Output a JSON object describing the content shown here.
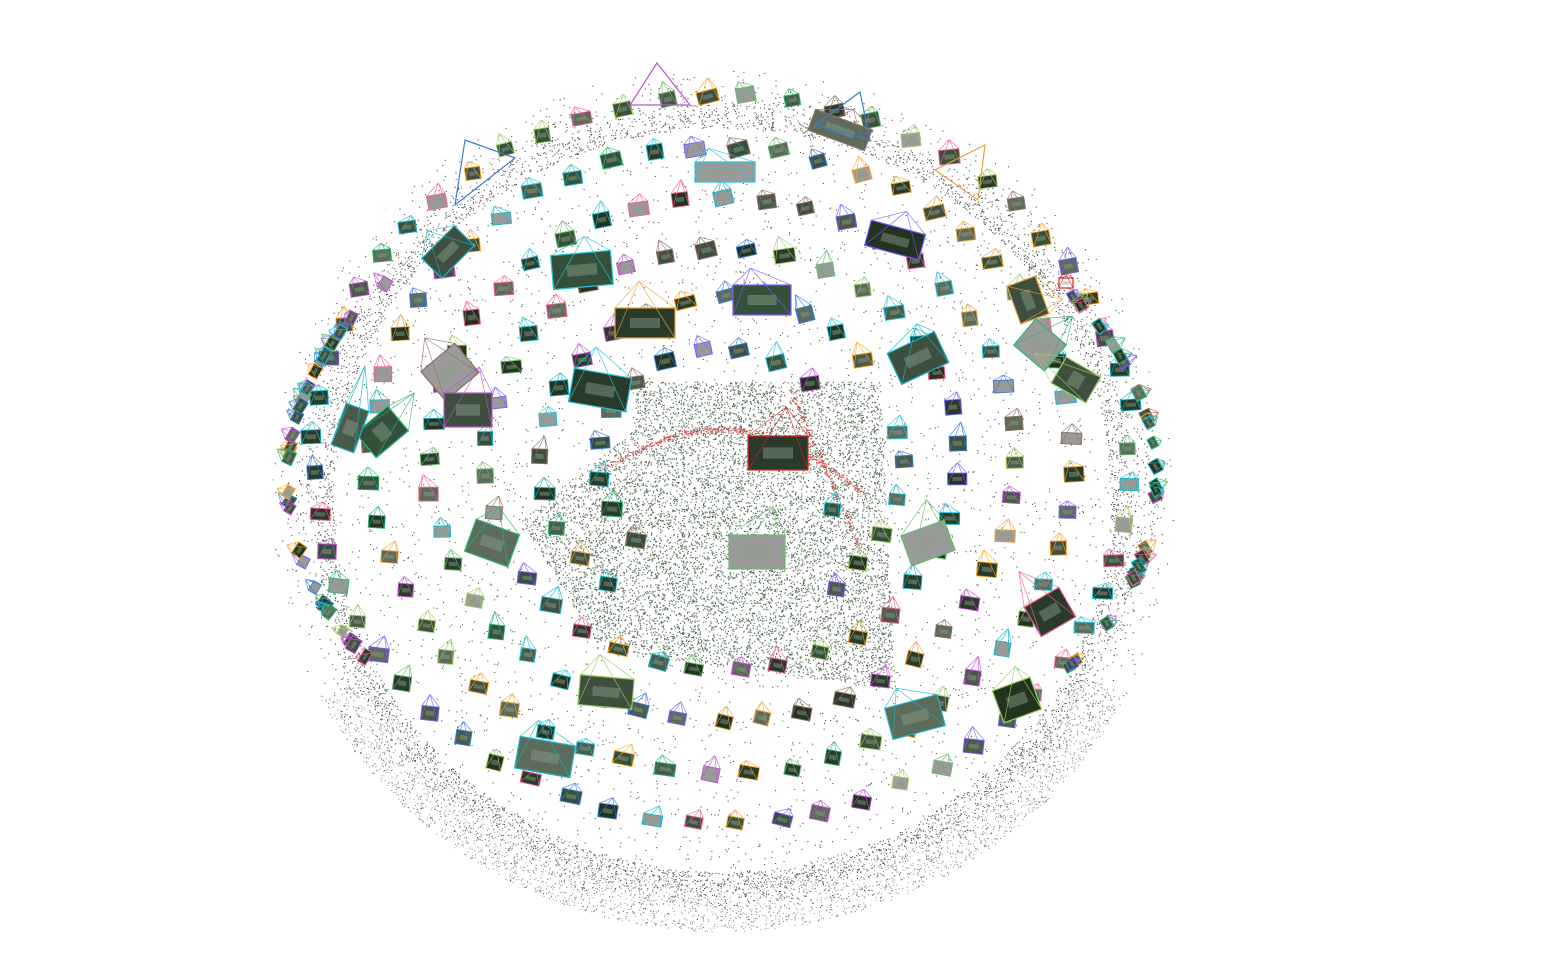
{
  "viewer": {
    "background_color": "#ffffff",
    "point_color": "#1a1a1a",
    "point_color_green": "#2f4a2f",
    "track_color": "#d03030",
    "selected_camera_color": "#e02020",
    "camera_frame_colors": [
      "#3a7bd5",
      "#2bb673",
      "#e6a23c",
      "#c04fd3",
      "#18b5c9",
      "#7a5cff",
      "#f06292",
      "#66bb6a",
      "#ffa726",
      "#26c6da",
      "#8d6e63",
      "#9ccc65"
    ],
    "camera_thumbnail_colors": [
      "#2a3a2a",
      "#35503a",
      "#4a5a48",
      "#223322",
      "#5c6b5a",
      "#9a9a9a",
      "#3f4f3f"
    ]
  }
}
